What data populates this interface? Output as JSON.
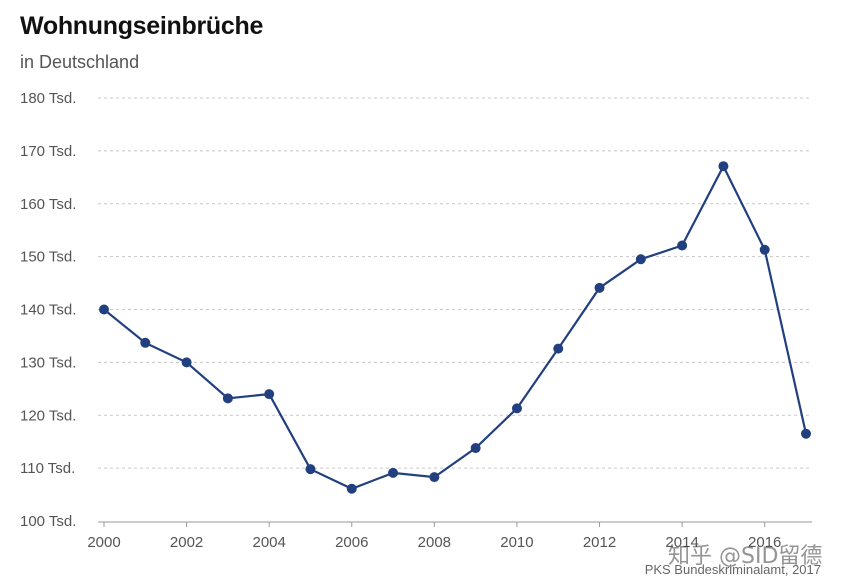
{
  "chart_data": {
    "type": "line",
    "title": "Wohnungseinbrüche",
    "subtitle": "in Deutschland",
    "xlabel": "",
    "ylabel": "",
    "x": [
      2000,
      2001,
      2002,
      2003,
      2004,
      2005,
      2006,
      2007,
      2008,
      2009,
      2010,
      2011,
      2012,
      2013,
      2014,
      2015,
      2016,
      2017
    ],
    "series": [
      {
        "name": "Wohnungseinbrüche",
        "values": [
          140.0,
          133.7,
          130.0,
          123.2,
          124.0,
          109.8,
          106.1,
          109.1,
          108.3,
          113.8,
          121.3,
          132.6,
          144.1,
          149.5,
          152.1,
          167.1,
          151.3,
          116.5
        ]
      }
    ],
    "xticks": [
      "2000",
      "2002",
      "2004",
      "2006",
      "2008",
      "2010",
      "2012",
      "2014",
      "2016"
    ],
    "yticks": [
      100,
      110,
      120,
      130,
      140,
      150,
      160,
      170,
      180
    ],
    "ytick_labels": [
      "100 Tsd.",
      "110 Tsd.",
      "120 Tsd.",
      "130 Tsd.",
      "140 Tsd.",
      "150 Tsd.",
      "160 Tsd.",
      "170 Tsd.",
      "180 Tsd."
    ],
    "xlim": [
      2000,
      2017
    ],
    "ylim": [
      100,
      180
    ],
    "grid": true,
    "legend": "none",
    "source": "PKS Bundeskriminalamt, 2017"
  },
  "watermark": "知乎 @SID留德",
  "colors": {
    "line": "#22407f",
    "grid": "#c8c8c8"
  }
}
